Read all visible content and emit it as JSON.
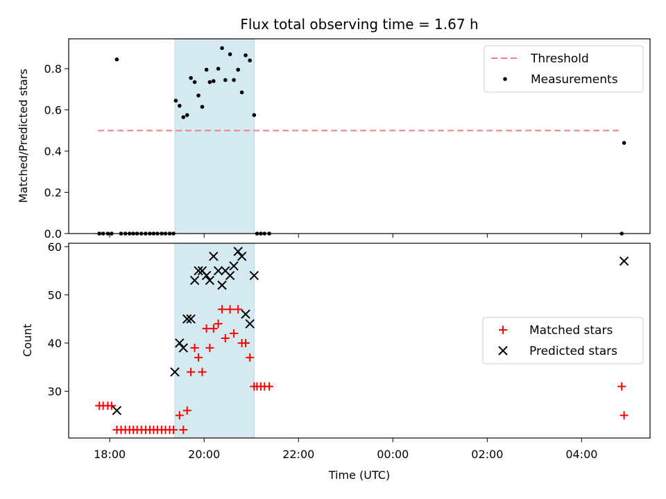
{
  "chart_data": {
    "title": "Flux total observing time = 1.67 h",
    "x_axis": {
      "label": "Time (UTC)",
      "range_hours": [
        17.13,
        29.45
      ],
      "ticks": [
        {
          "value": 18,
          "label": "18:00"
        },
        {
          "value": 20,
          "label": "20:00"
        },
        {
          "value": 22,
          "label": "22:00"
        },
        {
          "value": 24,
          "label": "00:00"
        },
        {
          "value": 26,
          "label": "02:00"
        },
        {
          "value": 28,
          "label": "04:00"
        }
      ]
    },
    "shaded_span_hours": [
      19.38,
      21.06
    ],
    "shade_color": "#d4eaf0",
    "panels": [
      {
        "type": "scatter",
        "ylabel": "Matched/Predicted stars",
        "ylim": [
          0,
          0.945
        ],
        "yticks": [
          {
            "value": 0.0,
            "label": "0.0"
          },
          {
            "value": 0.2,
            "label": "0.2"
          },
          {
            "value": 0.4,
            "label": "0.4"
          },
          {
            "value": 0.6,
            "label": "0.6"
          },
          {
            "value": 0.8,
            "label": "0.8"
          }
        ],
        "legend_position": "top-right",
        "threshold": {
          "name": "Threshold",
          "y": 0.5,
          "x_range": [
            17.75,
            28.8
          ],
          "color": "#f08080"
        },
        "measurements": {
          "name": "Measurements",
          "color": "#000000",
          "points": [
            [
              17.78,
              0
            ],
            [
              17.86,
              0
            ],
            [
              17.96,
              0
            ],
            [
              18.04,
              0
            ],
            [
              18.15,
              0.845
            ],
            [
              18.24,
              0
            ],
            [
              18.33,
              0
            ],
            [
              18.42,
              0
            ],
            [
              18.5,
              0
            ],
            [
              18.58,
              0
            ],
            [
              18.67,
              0
            ],
            [
              18.76,
              0
            ],
            [
              18.85,
              0
            ],
            [
              18.93,
              0
            ],
            [
              19.01,
              0
            ],
            [
              19.1,
              0
            ],
            [
              19.18,
              0
            ],
            [
              19.27,
              0
            ],
            [
              19.35,
              0
            ],
            [
              19.4,
              0.645
            ],
            [
              19.48,
              0.62
            ],
            [
              19.56,
              0.565
            ],
            [
              19.64,
              0.575
            ],
            [
              19.72,
              0.755
            ],
            [
              19.8,
              0.735
            ],
            [
              19.88,
              0.67
            ],
            [
              19.96,
              0.615
            ],
            [
              20.05,
              0.795
            ],
            [
              20.12,
              0.735
            ],
            [
              20.2,
              0.74
            ],
            [
              20.3,
              0.8
            ],
            [
              20.38,
              0.9
            ],
            [
              20.45,
              0.745
            ],
            [
              20.55,
              0.87
            ],
            [
              20.63,
              0.745
            ],
            [
              20.72,
              0.795
            ],
            [
              20.8,
              0.685
            ],
            [
              20.88,
              0.865
            ],
            [
              20.97,
              0.84
            ],
            [
              21.06,
              0.575
            ],
            [
              21.12,
              0
            ],
            [
              21.2,
              0
            ],
            [
              21.28,
              0
            ],
            [
              21.38,
              0
            ],
            [
              28.85,
              0
            ],
            [
              28.9,
              0.44
            ]
          ]
        }
      },
      {
        "type": "scatter",
        "ylabel": "Count",
        "ylim": [
          20.3,
          60.7
        ],
        "yticks": [
          {
            "value": 30,
            "label": "30"
          },
          {
            "value": 40,
            "label": "40"
          },
          {
            "value": 50,
            "label": "50"
          },
          {
            "value": 60,
            "label": "60"
          }
        ],
        "legend_position": "center-right",
        "series": [
          {
            "name": "Matched stars",
            "marker": "plus",
            "color": "#ff0000",
            "points": [
              [
                17.78,
                27
              ],
              [
                17.86,
                27
              ],
              [
                17.96,
                27
              ],
              [
                18.04,
                27
              ],
              [
                18.15,
                22
              ],
              [
                18.24,
                22
              ],
              [
                18.33,
                22
              ],
              [
                18.42,
                22
              ],
              [
                18.5,
                22
              ],
              [
                18.58,
                22
              ],
              [
                18.67,
                22
              ],
              [
                18.76,
                22
              ],
              [
                18.85,
                22
              ],
              [
                18.93,
                22
              ],
              [
                19.01,
                22
              ],
              [
                19.1,
                22
              ],
              [
                19.18,
                22
              ],
              [
                19.27,
                22
              ],
              [
                19.35,
                22
              ],
              [
                19.48,
                25
              ],
              [
                19.56,
                22
              ],
              [
                19.64,
                26
              ],
              [
                19.72,
                34
              ],
              [
                19.8,
                39
              ],
              [
                19.88,
                37
              ],
              [
                19.96,
                34
              ],
              [
                20.05,
                43
              ],
              [
                20.12,
                39
              ],
              [
                20.2,
                43
              ],
              [
                20.3,
                44
              ],
              [
                20.38,
                47
              ],
              [
                20.45,
                41
              ],
              [
                20.55,
                47
              ],
              [
                20.63,
                42
              ],
              [
                20.72,
                47
              ],
              [
                20.8,
                40
              ],
              [
                20.88,
                40
              ],
              [
                20.97,
                37
              ],
              [
                21.06,
                31
              ],
              [
                21.12,
                31
              ],
              [
                21.2,
                31
              ],
              [
                21.28,
                31
              ],
              [
                21.38,
                31
              ],
              [
                28.85,
                31
              ],
              [
                28.9,
                25
              ]
            ]
          },
          {
            "name": "Predicted stars",
            "marker": "x",
            "color": "#000000",
            "points": [
              [
                18.15,
                26
              ],
              [
                19.38,
                34
              ],
              [
                19.48,
                40
              ],
              [
                19.56,
                39
              ],
              [
                19.64,
                45
              ],
              [
                19.72,
                45
              ],
              [
                19.8,
                53
              ],
              [
                19.88,
                55
              ],
              [
                19.96,
                55
              ],
              [
                20.05,
                54
              ],
              [
                20.12,
                53
              ],
              [
                20.2,
                58
              ],
              [
                20.3,
                55
              ],
              [
                20.38,
                52
              ],
              [
                20.45,
                55
              ],
              [
                20.55,
                54
              ],
              [
                20.63,
                56
              ],
              [
                20.72,
                59
              ],
              [
                20.8,
                58
              ],
              [
                20.88,
                46
              ],
              [
                20.97,
                44
              ],
              [
                21.06,
                54
              ],
              [
                28.9,
                57
              ]
            ]
          }
        ]
      }
    ]
  }
}
